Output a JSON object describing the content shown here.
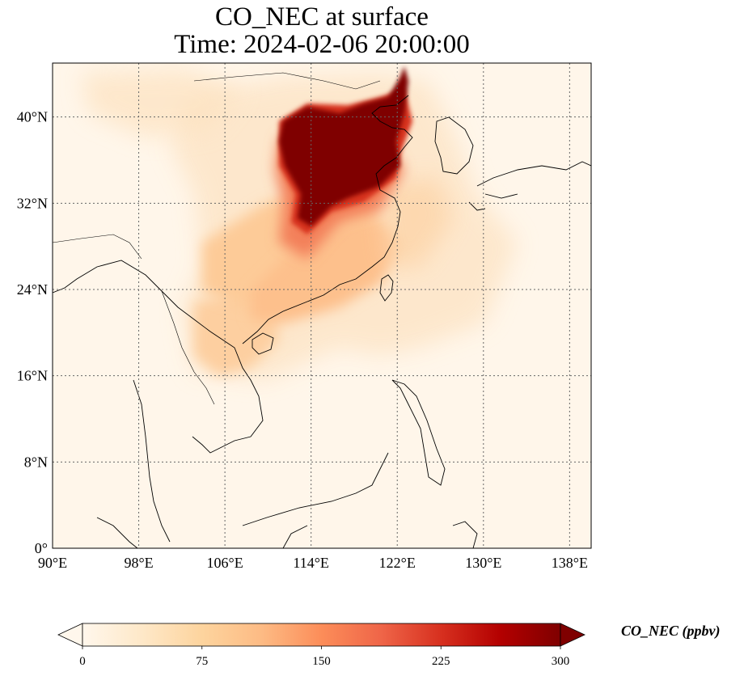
{
  "title": {
    "line1": "CO_NEC at surface",
    "line2": "Time: 2024-02-06 20:00:00"
  },
  "map": {
    "lon_range": [
      90,
      140
    ],
    "lat_range": [
      0,
      45
    ],
    "projection": "PlateCarree",
    "gridlines": "dotted",
    "lon_ticks": [
      {
        "value": 90,
        "label": "90°E"
      },
      {
        "value": 98,
        "label": "98°E"
      },
      {
        "value": 106,
        "label": "106°E"
      },
      {
        "value": 114,
        "label": "114°E"
      },
      {
        "value": 122,
        "label": "122°E"
      },
      {
        "value": 130,
        "label": "130°E"
      },
      {
        "value": 138,
        "label": "138°E"
      }
    ],
    "lat_ticks": [
      {
        "value": 0,
        "label": "0°"
      },
      {
        "value": 8,
        "label": "8°N"
      },
      {
        "value": 16,
        "label": "16°N"
      },
      {
        "value": 24,
        "label": "24°N"
      },
      {
        "value": 32,
        "label": "32°N"
      },
      {
        "value": 40,
        "label": "40°N"
      }
    ]
  },
  "colorbar": {
    "label": "CO_NEC (ppbv)",
    "colormap": "OrRd",
    "range": [
      0,
      300
    ],
    "extend": "both",
    "colors": [
      "#fff7ec",
      "#fee8c8",
      "#fdd49e",
      "#fdbb84",
      "#fc8d59",
      "#ef6548",
      "#d7301f",
      "#b30000",
      "#7f0000"
    ],
    "ticks": [
      {
        "value": 0,
        "label": "0"
      },
      {
        "value": 75,
        "label": "75"
      },
      {
        "value": 150,
        "label": "150"
      },
      {
        "value": 225,
        "label": "225"
      },
      {
        "value": 300,
        "label": "300"
      }
    ]
  },
  "plumes": [
    {
      "region": "North China Plain",
      "level": 300
    },
    {
      "region": "Yangtze River Delta",
      "level": 300
    },
    {
      "region": "Southeast China coast",
      "level": 180
    },
    {
      "region": "Sichuan / central China",
      "level": 110
    },
    {
      "region": "Northern Vietnam / Gulf of Tonkin",
      "level": 80
    },
    {
      "region": "East China Sea / Taiwan",
      "level": 70
    },
    {
      "region": "Mongolia",
      "level": 40
    },
    {
      "region": "Indochina",
      "level": 25
    },
    {
      "region": "Pacific background",
      "level": 15
    }
  ]
}
